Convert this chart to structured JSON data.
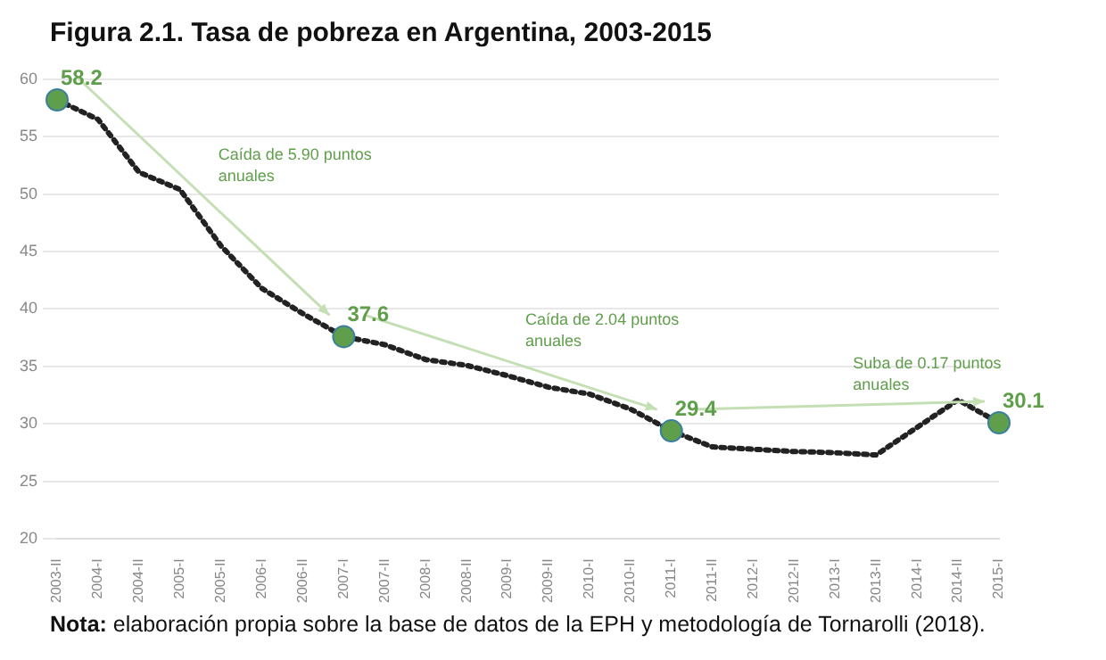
{
  "chart_data": {
    "type": "line",
    "title": "Figura 2.1. Tasa de pobreza en Argentina, 2003-2015",
    "categories": [
      "2003-II",
      "2004-I",
      "2004-II",
      "2005-I",
      "2005-II",
      "2006-I",
      "2006-II",
      "2007-I",
      "2007-II",
      "2008-I",
      "2008-II",
      "2009-I",
      "2009-II",
      "2010-I",
      "2010-II",
      "2011-I",
      "2011-II",
      "2012-I",
      "2012-II",
      "2013-I",
      "2013-II",
      "2014-I",
      "2014-II",
      "2015-I"
    ],
    "series": [
      {
        "color": "#222222",
        "colors": [
          "#5f9e4a",
          "#5f9e4a",
          "#5f9e4a",
          "#5f9e4a",
          "#5f9e4a",
          "#5f9e4a",
          "#5f9e4a",
          "#5f9e4a",
          "#5f9e4a",
          "#5f9e4a",
          "#5f9e4a",
          "#5f9e4a",
          "#5f9e4a",
          "#5f9e4a",
          "#5f9e4a",
          "#5f9e4a",
          "#5f9e4a",
          "#5f9e4a",
          "#5f9e4a",
          "#5f9e4a",
          "#5f9e4a",
          "#5f9e4a",
          "#5f9e4a",
          "#5f9e4a"
        ],
        "values": [
          58.2,
          56.5,
          51.9,
          50.4,
          45.5,
          41.8,
          39.6,
          37.6,
          36.9,
          35.6,
          35.1,
          34.2,
          33.2,
          32.6,
          31.3,
          29.4,
          28.0,
          27.8,
          27.6,
          27.5,
          27.3,
          29.7,
          32.1,
          30.1
        ],
        "value_labels": [
          "58.2",
          null,
          null,
          null,
          null,
          null,
          null,
          "37.6",
          null,
          null,
          null,
          null,
          null,
          null,
          null,
          "29.4",
          null,
          null,
          null,
          null,
          null,
          null,
          null,
          "30.1"
        ]
      }
    ],
    "ylim": [
      20,
      60
    ],
    "yticks": [
      20,
      25,
      30,
      35,
      40,
      45,
      50,
      55,
      60
    ],
    "grid": "y",
    "legend": false,
    "line_style": "dotted",
    "annotations": [
      "Caída de 5.90 puntos anuales",
      "Caída de 2.04 puntos anuales",
      "Suba de 0.17 puntos anuales",
      "Nota: elaboración propia sobre la base de datos de la EPH y metodología de Tornarolli (2018)."
    ]
  }
}
